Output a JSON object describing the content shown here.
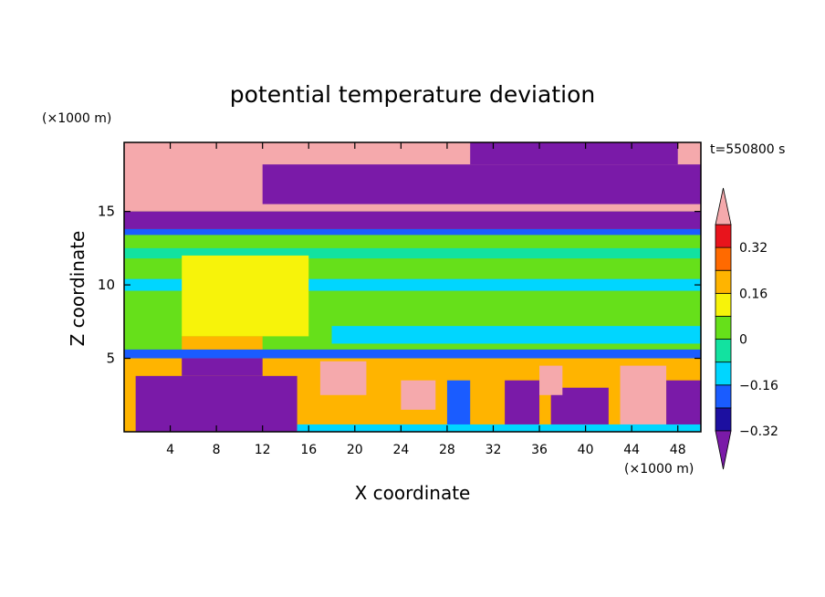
{
  "chart_data": {
    "type": "heatmap",
    "title": "potential temperature deviation",
    "xlabel": "X coordinate",
    "ylabel": "Z coordinate",
    "x_unit": "(×1000 m)",
    "y_unit": "(×1000 m)",
    "time_label": "t=550800 s",
    "xlim": [
      0,
      50
    ],
    "ylim": [
      0,
      19.7
    ],
    "x_ticks": [
      4,
      8,
      12,
      16,
      20,
      24,
      28,
      32,
      36,
      40,
      44,
      48
    ],
    "y_ticks": [
      5,
      10,
      15
    ],
    "colorbar": {
      "ticks": [
        0.32,
        0.16,
        0,
        -0.16,
        -0.32
      ],
      "levels": [
        -0.4,
        -0.32,
        -0.24,
        -0.16,
        -0.08,
        0,
        0.08,
        0.16,
        0.24,
        0.32,
        0.4
      ],
      "colors": [
        "#7a1aa8",
        "#1c0fa0",
        "#1a5cff",
        "#00d6ff",
        "#12e2a0",
        "#66e01a",
        "#f7f30a",
        "#ffb400",
        "#ff6a00",
        "#e8141c",
        "#f5a9ac"
      ]
    },
    "regions": [
      {
        "x": [
          0,
          50
        ],
        "z": [
          0,
          19.7
        ],
        "value": 0.02
      },
      {
        "x": [
          0,
          50
        ],
        "z": [
          15.0,
          19.7
        ],
        "value": 0.45
      },
      {
        "x": [
          12,
          50
        ],
        "z": [
          15.5,
          18.2
        ],
        "value": -0.45
      },
      {
        "x": [
          30,
          48
        ],
        "z": [
          18.2,
          19.7
        ],
        "value": -0.45
      },
      {
        "x": [
          0,
          50
        ],
        "z": [
          13.8,
          15.0
        ],
        "value": -0.45
      },
      {
        "x": [
          0,
          50
        ],
        "z": [
          13.4,
          13.8
        ],
        "value": -0.2
      },
      {
        "x": [
          0,
          50
        ],
        "z": [
          11.8,
          12.5
        ],
        "value": -0.05
      },
      {
        "x": [
          0,
          50
        ],
        "z": [
          9.6,
          10.4
        ],
        "value": -0.12
      },
      {
        "x": [
          5,
          16
        ],
        "z": [
          6.5,
          12.0
        ],
        "value": 0.1
      },
      {
        "x": [
          5,
          12
        ],
        "z": [
          5.0,
          6.5
        ],
        "value": 0.2
      },
      {
        "x": [
          18,
          50
        ],
        "z": [
          6.0,
          7.2
        ],
        "value": -0.12
      },
      {
        "x": [
          0,
          50
        ],
        "z": [
          5.0,
          5.6
        ],
        "value": -0.2
      },
      {
        "x": [
          0,
          50
        ],
        "z": [
          0,
          5.0
        ],
        "value": 0.2
      },
      {
        "x": [
          1,
          15
        ],
        "z": [
          0,
          3.8
        ],
        "value": -0.45
      },
      {
        "x": [
          5,
          12
        ],
        "z": [
          3.8,
          5.0
        ],
        "value": -0.45
      },
      {
        "x": [
          17,
          21
        ],
        "z": [
          2.5,
          4.8
        ],
        "value": 0.45
      },
      {
        "x": [
          24,
          27
        ],
        "z": [
          1.5,
          3.5
        ],
        "value": 0.45
      },
      {
        "x": [
          28,
          30
        ],
        "z": [
          0,
          3.5
        ],
        "value": -0.2
      },
      {
        "x": [
          33,
          36
        ],
        "z": [
          0.5,
          3.5
        ],
        "value": -0.45
      },
      {
        "x": [
          37,
          42
        ],
        "z": [
          0.5,
          3.0
        ],
        "value": -0.45
      },
      {
        "x": [
          36,
          38
        ],
        "z": [
          2.5,
          4.5
        ],
        "value": 0.45
      },
      {
        "x": [
          43,
          47
        ],
        "z": [
          0,
          4.5
        ],
        "value": 0.45
      },
      {
        "x": [
          47,
          50
        ],
        "z": [
          0,
          3.5
        ],
        "value": -0.45
      },
      {
        "x": [
          15,
          50
        ],
        "z": [
          0,
          0.5
        ],
        "value": -0.12
      }
    ]
  }
}
